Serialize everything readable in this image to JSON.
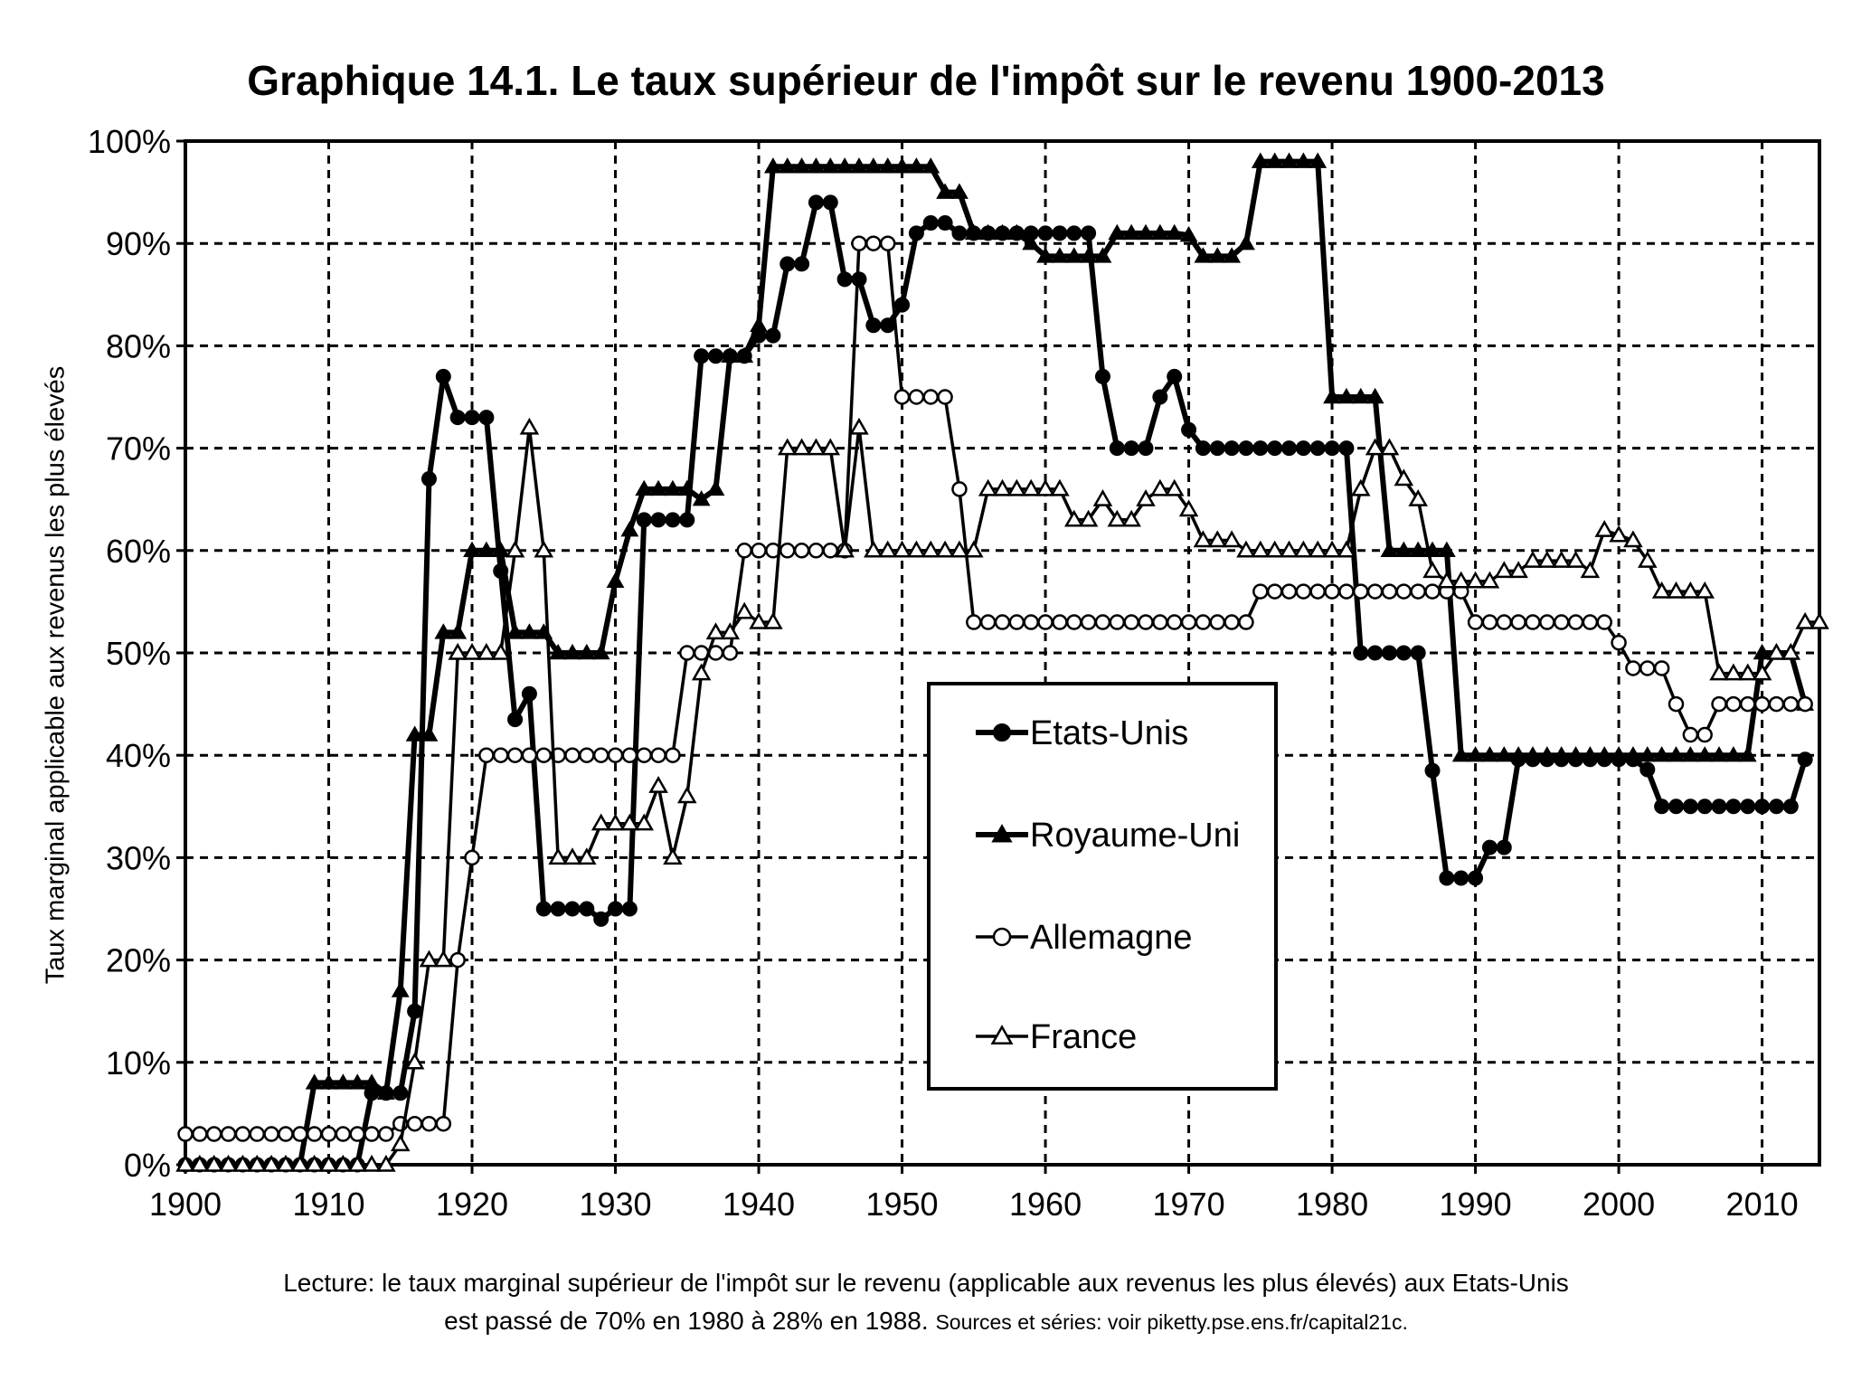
{
  "chart_data": {
    "type": "line",
    "title": "Graphique 14.1. Le taux supérieur de l'impôt sur le revenu 1900-2013",
    "xlabel": "",
    "ylabel": "Taux marginal applicable aux revenus les plus élevés",
    "xlim": [
      1900,
      2014
    ],
    "ylim": [
      0,
      100
    ],
    "x_ticks": [
      "1900",
      "1910",
      "1920",
      "1930",
      "1940",
      "1950",
      "1960",
      "1970",
      "1980",
      "1990",
      "2000",
      "2010"
    ],
    "y_ticks": [
      "0%",
      "10%",
      "20%",
      "30%",
      "40%",
      "50%",
      "60%",
      "70%",
      "80%",
      "90%",
      "100%"
    ],
    "grid": true,
    "legend_position": "center-right",
    "series": [
      {
        "name": "Etats-Unis",
        "marker": "filled-circle",
        "points": [
          [
            1900,
            0
          ],
          [
            1912,
            0
          ],
          [
            1913,
            7
          ],
          [
            1915,
            7
          ],
          [
            1916,
            15
          ],
          [
            1917,
            67
          ],
          [
            1918,
            77
          ],
          [
            1919,
            73
          ],
          [
            1921,
            73
          ],
          [
            1922,
            58
          ],
          [
            1923,
            43.5
          ],
          [
            1924,
            46
          ],
          [
            1925,
            25
          ],
          [
            1928,
            25
          ],
          [
            1929,
            24
          ],
          [
            1930,
            25
          ],
          [
            1931,
            25
          ],
          [
            1932,
            63
          ],
          [
            1935,
            63
          ],
          [
            1936,
            79
          ],
          [
            1940,
            81
          ],
          [
            1941,
            81
          ],
          [
            1942,
            88
          ],
          [
            1943,
            88
          ],
          [
            1944,
            94
          ],
          [
            1945,
            94
          ],
          [
            1946,
            86.5
          ],
          [
            1947,
            86.5
          ],
          [
            1948,
            82
          ],
          [
            1949,
            82
          ],
          [
            1950,
            84
          ],
          [
            1951,
            91
          ],
          [
            1952,
            92
          ],
          [
            1953,
            92
          ],
          [
            1954,
            91
          ],
          [
            1963,
            91
          ],
          [
            1964,
            77
          ],
          [
            1965,
            70
          ],
          [
            1967,
            70
          ],
          [
            1968,
            75
          ],
          [
            1969,
            77
          ],
          [
            1970,
            71.8
          ],
          [
            1971,
            70
          ],
          [
            1981,
            70
          ],
          [
            1982,
            50
          ],
          [
            1986,
            50
          ],
          [
            1987,
            38.5
          ],
          [
            1988,
            28
          ],
          [
            1990,
            28
          ],
          [
            1991,
            31
          ],
          [
            1992,
            31
          ],
          [
            1993,
            39.6
          ],
          [
            2001,
            39.6
          ],
          [
            2002,
            38.6
          ],
          [
            2003,
            35
          ],
          [
            2012,
            35
          ],
          [
            2013,
            39.6
          ]
        ]
      },
      {
        "name": "Royaume-Uni",
        "marker": "filled-triangle",
        "points": [
          [
            1900,
            0
          ],
          [
            1908,
            0
          ],
          [
            1909,
            8
          ],
          [
            1913,
            8
          ],
          [
            1914,
            7
          ],
          [
            1915,
            17
          ],
          [
            1916,
            42
          ],
          [
            1917,
            42
          ],
          [
            1918,
            52
          ],
          [
            1919,
            52
          ],
          [
            1920,
            60
          ],
          [
            1922,
            60
          ],
          [
            1923,
            52
          ],
          [
            1925,
            52
          ],
          [
            1926,
            50
          ],
          [
            1929,
            50
          ],
          [
            1930,
            57
          ],
          [
            1931,
            62
          ],
          [
            1932,
            66
          ],
          [
            1935,
            66
          ],
          [
            1936,
            65
          ],
          [
            1937,
            66
          ],
          [
            1938,
            79
          ],
          [
            1939,
            79
          ],
          [
            1940,
            82
          ],
          [
            1941,
            97.5
          ],
          [
            1952,
            97.5
          ],
          [
            1953,
            95
          ],
          [
            1954,
            95
          ],
          [
            1955,
            91
          ],
          [
            1958,
            91
          ],
          [
            1959,
            90
          ],
          [
            1960,
            88.75
          ],
          [
            1964,
            88.75
          ],
          [
            1965,
            91
          ],
          [
            1969,
            91
          ],
          [
            1970,
            90.8
          ],
          [
            1971,
            88.75
          ],
          [
            1973,
            88.75
          ],
          [
            1974,
            90
          ],
          [
            1975,
            98
          ],
          [
            1979,
            98
          ],
          [
            1980,
            75
          ],
          [
            1983,
            75
          ],
          [
            1984,
            60
          ],
          [
            1988,
            60
          ],
          [
            1989,
            40
          ],
          [
            2009,
            40
          ],
          [
            2010,
            50
          ],
          [
            2012,
            50
          ],
          [
            2013,
            45
          ]
        ]
      },
      {
        "name": "Allemagne",
        "marker": "open-circle",
        "points": [
          [
            1900,
            3
          ],
          [
            1914,
            3
          ],
          [
            1915,
            4
          ],
          [
            1918,
            4
          ],
          [
            1919,
            20
          ],
          [
            1920,
            30
          ],
          [
            1921,
            40
          ],
          [
            1934,
            40
          ],
          [
            1935,
            50
          ],
          [
            1938,
            50
          ],
          [
            1939,
            60
          ],
          [
            1946,
            60
          ],
          [
            1947,
            90
          ],
          [
            1949,
            90
          ],
          [
            1950,
            75
          ],
          [
            1953,
            75
          ],
          [
            1954,
            66
          ],
          [
            1955,
            53
          ],
          [
            1974,
            53
          ],
          [
            1975,
            56
          ],
          [
            1989,
            56
          ],
          [
            1990,
            53
          ],
          [
            1999,
            53
          ],
          [
            2000,
            51
          ],
          [
            2001,
            48.5
          ],
          [
            2003,
            48.5
          ],
          [
            2004,
            45
          ],
          [
            2005,
            42
          ],
          [
            2006,
            42
          ],
          [
            2007,
            45
          ],
          [
            2013,
            45
          ]
        ]
      },
      {
        "name": "France",
        "marker": "open-triangle",
        "points": [
          [
            1900,
            0
          ],
          [
            1914,
            0
          ],
          [
            1915,
            2
          ],
          [
            1916,
            10
          ],
          [
            1917,
            20
          ],
          [
            1918,
            20
          ],
          [
            1919,
            50
          ],
          [
            1922,
            50
          ],
          [
            1923,
            60
          ],
          [
            1924,
            72
          ],
          [
            1925,
            60
          ],
          [
            1926,
            30
          ],
          [
            1928,
            30
          ],
          [
            1929,
            33.33
          ],
          [
            1932,
            33.33
          ],
          [
            1933,
            37
          ],
          [
            1934,
            30
          ],
          [
            1935,
            36
          ],
          [
            1936,
            48
          ],
          [
            1937,
            52
          ],
          [
            1938,
            52
          ],
          [
            1939,
            54
          ],
          [
            1940,
            53
          ],
          [
            1941,
            53
          ],
          [
            1942,
            70
          ],
          [
            1945,
            70
          ],
          [
            1946,
            60
          ],
          [
            1947,
            72
          ],
          [
            1948,
            60
          ],
          [
            1955,
            60
          ],
          [
            1956,
            66
          ],
          [
            1960,
            66
          ],
          [
            1961,
            66
          ],
          [
            1962,
            63
          ],
          [
            1963,
            63
          ],
          [
            1964,
            65
          ],
          [
            1965,
            63
          ],
          [
            1966,
            63
          ],
          [
            1967,
            65
          ],
          [
            1968,
            66
          ],
          [
            1969,
            66
          ],
          [
            1970,
            64
          ],
          [
            1971,
            61
          ],
          [
            1973,
            61
          ],
          [
            1974,
            60
          ],
          [
            1981,
            60
          ],
          [
            1982,
            66
          ],
          [
            1983,
            70
          ],
          [
            1984,
            70
          ],
          [
            1985,
            67
          ],
          [
            1986,
            65
          ],
          [
            1987,
            58
          ],
          [
            1988,
            57
          ],
          [
            1991,
            57
          ],
          [
            1992,
            58
          ],
          [
            1993,
            58
          ],
          [
            1994,
            59
          ],
          [
            1997,
            59
          ],
          [
            1998,
            58
          ],
          [
            1999,
            62
          ],
          [
            2000,
            61.5
          ],
          [
            2001,
            61
          ],
          [
            2002,
            59
          ],
          [
            2003,
            56
          ],
          [
            2006,
            56
          ],
          [
            2007,
            48
          ],
          [
            2010,
            48
          ],
          [
            2011,
            50
          ],
          [
            2012,
            50
          ],
          [
            2013,
            53
          ],
          [
            2014,
            53
          ]
        ]
      }
    ]
  },
  "reading_note": {
    "line1": "Lecture: le taux marginal supérieur de l'impôt sur le revenu (applicable aux revenus les plus élevés) aux Etats-Unis",
    "line2": "est passé de 70% en 1980 à 28% en 1988.",
    "sources": "Sources et séries: voir piketty.pse.ens.fr/capital21c."
  }
}
